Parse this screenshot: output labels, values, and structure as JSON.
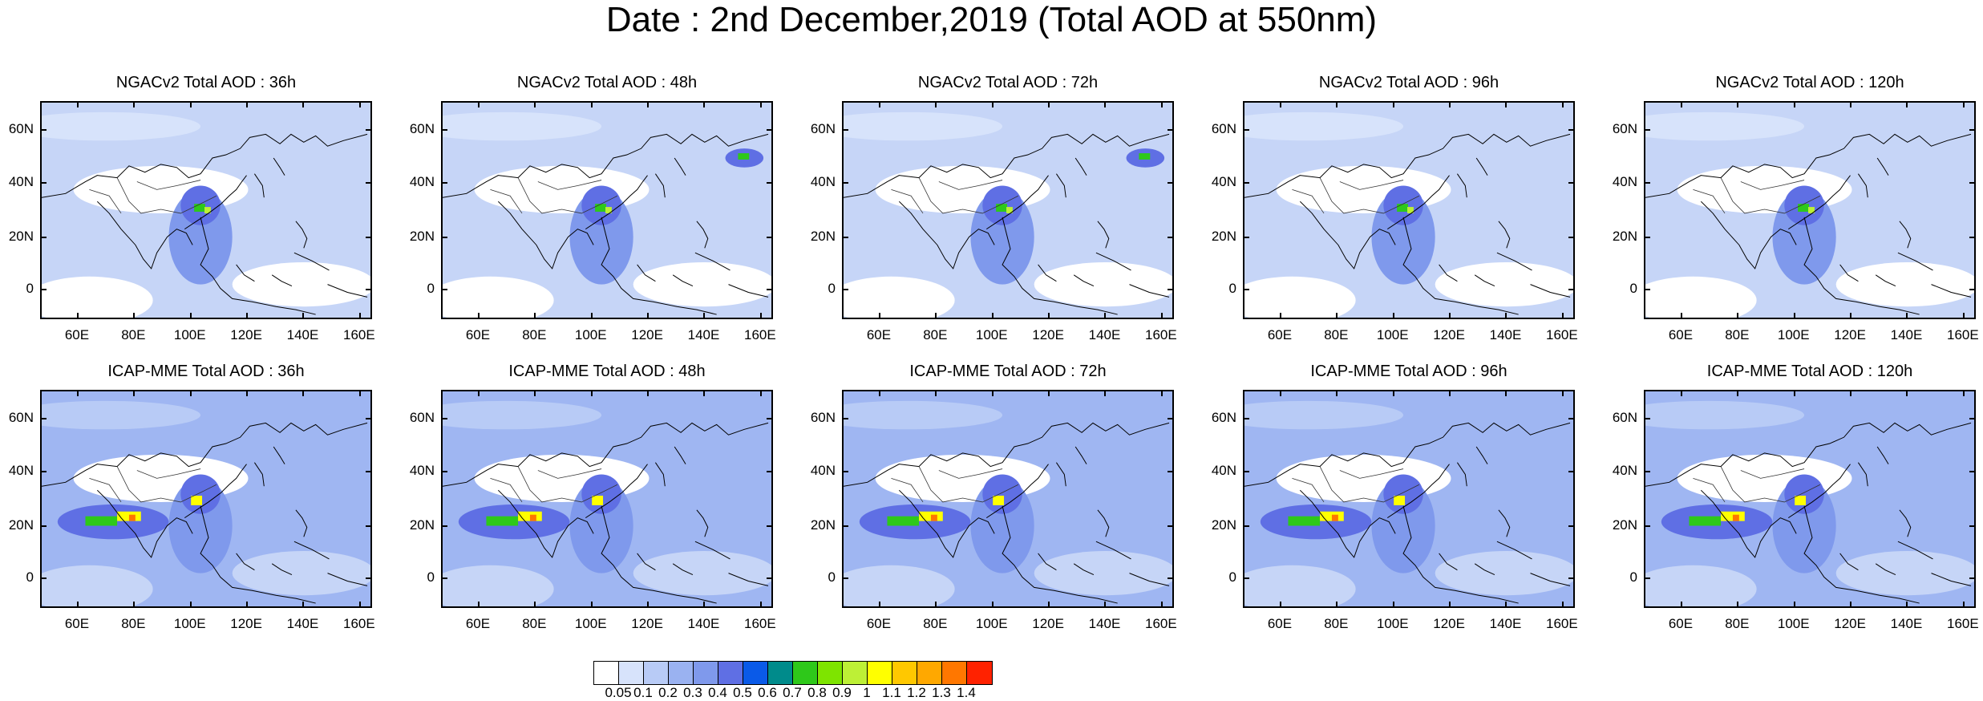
{
  "title": "Date : 2nd December,2019 (Total AOD at 550nm)",
  "panels": [
    {
      "title": "NGACv2 Total AOD : 36h"
    },
    {
      "title": "NGACv2 Total AOD : 48h"
    },
    {
      "title": "NGACv2 Total AOD : 72h"
    },
    {
      "title": "NGACv2 Total AOD : 96h"
    },
    {
      "title": "NGACv2 Total AOD : 120h"
    },
    {
      "title": "ICAP-MME Total AOD : 36h"
    },
    {
      "title": "ICAP-MME Total AOD : 48h"
    },
    {
      "title": "ICAP-MME Total AOD : 72h"
    },
    {
      "title": "ICAP-MME Total AOD : 96h"
    },
    {
      "title": "ICAP-MME Total AOD : 120h"
    }
  ],
  "map": {
    "lat_labels": [
      "60N",
      "40N",
      "20N",
      "0"
    ],
    "lon_labels": [
      "60E",
      "80E",
      "100E",
      "120E",
      "140E",
      "160E"
    ]
  },
  "colorbar": {
    "labels": [
      "0.05",
      "0.1",
      "0.2",
      "0.3",
      "0.4",
      "0.5",
      "0.6",
      "0.7",
      "0.8",
      "0.9",
      "1",
      "1.1",
      "1.2",
      "1.3",
      "1.4"
    ],
    "colors": [
      "#ffffff",
      "#d7e3fb",
      "#b8cbf6",
      "#9ab2f1",
      "#7f99ec",
      "#5f6fe4",
      "#0a5ae8",
      "#008b8b",
      "#2ec81a",
      "#7ee400",
      "#bdf036",
      "#ffff00",
      "#ffc800",
      "#ffa800",
      "#ff7700",
      "#ff2200"
    ]
  }
}
